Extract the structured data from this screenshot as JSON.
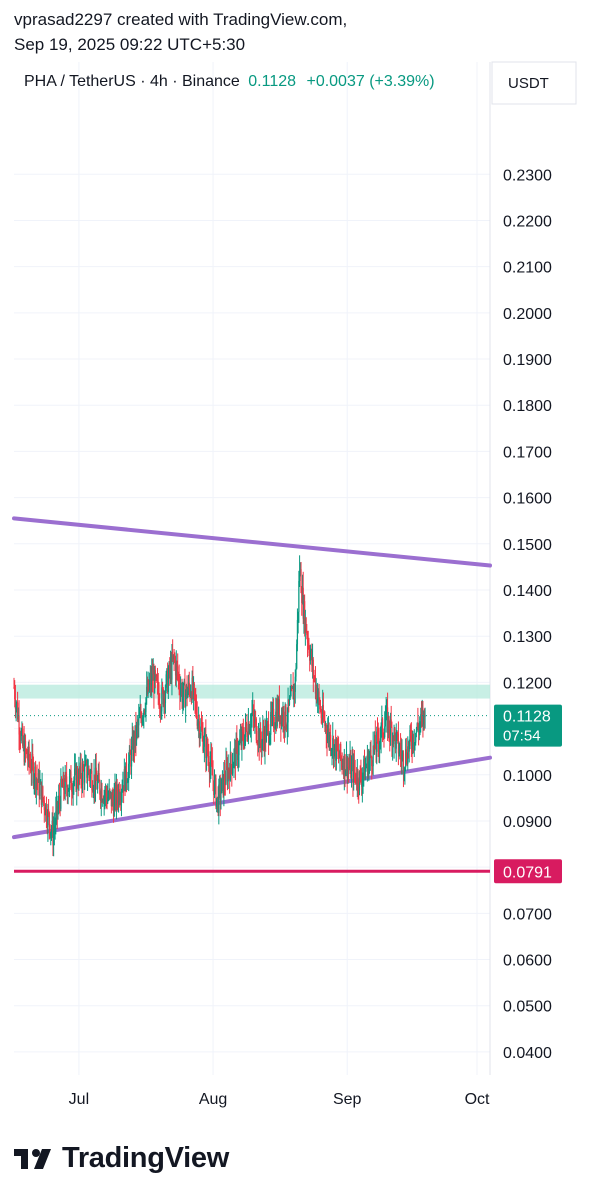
{
  "credit": {
    "line1": "vprasad2297 created with TradingView.com,",
    "line2": "Sep 19, 2025 09:22 UTC+5:30"
  },
  "legend": {
    "symbol": "PHA / TetherUS · 4h · Binance",
    "price": "0.1128",
    "change": "+0.0037 (+3.39%)"
  },
  "axis": {
    "currency": "USDT"
  },
  "brand": {
    "name": "TradingView"
  },
  "colors": {
    "up": "#089981",
    "down": "#f23645",
    "trendline": "#9b6fd0",
    "zone": "#b6e9dc",
    "support_line": "#d81b60"
  },
  "chart_data": {
    "type": "candlestick",
    "symbol": "PHA / TetherUS",
    "timeframe": "4h",
    "exchange": "Binance",
    "y_axis": {
      "unit": "USDT",
      "range": [
        0.035,
        0.245
      ],
      "ticks": [
        0.23,
        0.22,
        0.21,
        0.2,
        0.19,
        0.18,
        0.17,
        0.16,
        0.15,
        0.14,
        0.13,
        0.12,
        0.11,
        0.1,
        0.09,
        0.08,
        0.07,
        0.06,
        0.05,
        0.04
      ],
      "tick_labels": [
        "0.2300",
        "0.2200",
        "0.2100",
        "0.2000",
        "0.1900",
        "0.1800",
        "0.1700",
        "0.1600",
        "0.1500",
        "0.1400",
        "0.1300",
        "0.1200",
        "0.1100",
        "0.1000",
        "0.0900",
        "0.0800",
        "0.0700",
        "0.0600",
        "0.0500",
        "0.0400"
      ]
    },
    "x_axis": {
      "range": [
        "2025-06-16",
        "2025-10-04"
      ],
      "ticks": [
        {
          "date": "2025-07-01",
          "label": "Jul"
        },
        {
          "date": "2025-08-01",
          "label": "Aug"
        },
        {
          "date": "2025-09-01",
          "label": "Sep"
        },
        {
          "date": "2025-10-01",
          "label": "Oct"
        }
      ]
    },
    "grid": true,
    "last_price": {
      "value": 0.1128,
      "label": "0.1128",
      "countdown": "07:54"
    },
    "horizontal_line": {
      "value": 0.0791,
      "label": "0.0791"
    },
    "resistance_zone": {
      "from": 0.1165,
      "to": 0.1195
    },
    "trendlines": [
      {
        "name": "upper",
        "points": [
          [
            "2025-06-16",
            0.1555
          ],
          [
            "2025-10-04",
            0.1453
          ]
        ]
      },
      {
        "name": "lower",
        "points": [
          [
            "2025-06-16",
            0.0865
          ],
          [
            "2025-10-04",
            0.1037
          ]
        ]
      }
    ],
    "price_path": [
      [
        "2025-06-16",
        0.119
      ],
      [
        "2025-06-18",
        0.106
      ],
      [
        "2025-06-21",
        0.1
      ],
      [
        "2025-06-23",
        0.094
      ],
      [
        "2025-06-25",
        0.087
      ],
      [
        "2025-06-27",
        0.097
      ],
      [
        "2025-06-30",
        0.099
      ],
      [
        "2025-07-03",
        0.101
      ],
      [
        "2025-07-06",
        0.097
      ],
      [
        "2025-07-09",
        0.094
      ],
      [
        "2025-07-12",
        0.1
      ],
      [
        "2025-07-14",
        0.108
      ],
      [
        "2025-07-16",
        0.115
      ],
      [
        "2025-07-18",
        0.121
      ],
      [
        "2025-07-20",
        0.116
      ],
      [
        "2025-07-23",
        0.125
      ],
      [
        "2025-07-25",
        0.117
      ],
      [
        "2025-07-27",
        0.119
      ],
      [
        "2025-07-29",
        0.11
      ],
      [
        "2025-07-31",
        0.104
      ],
      [
        "2025-08-02",
        0.094
      ],
      [
        "2025-08-04",
        0.1
      ],
      [
        "2025-08-06",
        0.104
      ],
      [
        "2025-08-08",
        0.108
      ],
      [
        "2025-08-10",
        0.113
      ],
      [
        "2025-08-12",
        0.107
      ],
      [
        "2025-08-14",
        0.11
      ],
      [
        "2025-08-16",
        0.114
      ],
      [
        "2025-08-18",
        0.112
      ],
      [
        "2025-08-20",
        0.12
      ],
      [
        "2025-08-21",
        0.145
      ],
      [
        "2025-08-22",
        0.135
      ],
      [
        "2025-08-24",
        0.123
      ],
      [
        "2025-08-26",
        0.113
      ],
      [
        "2025-08-28",
        0.108
      ],
      [
        "2025-08-30",
        0.104
      ],
      [
        "2025-09-02",
        0.101
      ],
      [
        "2025-09-04",
        0.099
      ],
      [
        "2025-09-06",
        0.103
      ],
      [
        "2025-09-08",
        0.107
      ],
      [
        "2025-09-10",
        0.112
      ],
      [
        "2025-09-12",
        0.108
      ],
      [
        "2025-09-14",
        0.103
      ],
      [
        "2025-09-16",
        0.108
      ],
      [
        "2025-09-19",
        0.1128
      ]
    ]
  }
}
